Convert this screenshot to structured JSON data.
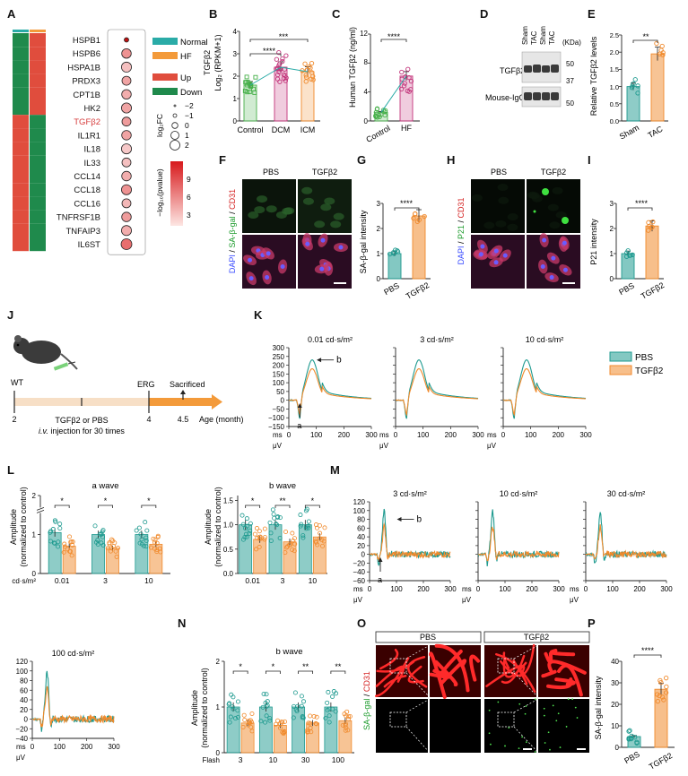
{
  "panels": [
    "A",
    "B",
    "C",
    "D",
    "E",
    "F",
    "G",
    "H",
    "I",
    "J",
    "K",
    "L",
    "M",
    "N",
    "O",
    "P"
  ],
  "colors": {
    "normal": "#2aaba7",
    "hf": "#f39a3a",
    "up": "#e04d3d",
    "down": "#1f8a4c",
    "teal": "#1e9a8f",
    "orange": "#f08a2c"
  },
  "panelA": {
    "genes": [
      "HSPB1",
      "HSPB6",
      "HSPA1B",
      "PRDX3",
      "CPT1B",
      "HK2",
      "TGFβ2",
      "IL1R1",
      "IL18",
      "IL33",
      "CCL14",
      "CCL18",
      "CCL16",
      "TNFRSF1B",
      "TNFAIP3",
      "IL6ST"
    ],
    "highlight_gene": "TGFβ2",
    "normal_col": [
      "down",
      "down",
      "down",
      "down",
      "down",
      "down",
      "up",
      "up",
      "up",
      "up",
      "up",
      "up",
      "up",
      "up",
      "up",
      "up"
    ],
    "hf_col": [
      "up",
      "up",
      "up",
      "up",
      "up",
      "up",
      "down",
      "down",
      "down",
      "down",
      "down",
      "down",
      "down",
      "down",
      "down",
      "down"
    ],
    "legend": {
      "normal": "Normal",
      "hf": "HF",
      "up": "Up",
      "down": "Down",
      "size_title": "log₂FC",
      "size_labels": [
        "−2",
        "−1",
        "0",
        "1",
        "2"
      ],
      "color_title": "−log₁₀(pvalue)",
      "color_ticks": [
        "9",
        "6",
        "3"
      ]
    }
  },
  "panelB": {
    "ylabel_top": "TGFβ2",
    "ylabel": "Log₂ (RPKM+1)",
    "categories": [
      "Control",
      "DCM",
      "ICM"
    ],
    "yticks": [
      "0",
      "1",
      "2",
      "3",
      "4"
    ],
    "ylim": [
      0,
      4
    ],
    "means": [
      1.6,
      2.4,
      2.2
    ],
    "sig": [
      "****",
      "***"
    ]
  },
  "panelC": {
    "ylabel": "Human TGFβ2 (ng/ml)",
    "categories": [
      "Control",
      "HF"
    ],
    "yticks": [
      "0",
      "4",
      "8",
      "12"
    ],
    "ylim": [
      0,
      12
    ],
    "means": [
      1.2,
      6.2
    ],
    "sig": "****"
  },
  "panelD": {
    "lanes": [
      "Sham",
      "TAC",
      "Sham",
      "TAC"
    ],
    "kda": "(KDa)",
    "row1": "TGFβ2",
    "row2": "Mouse-IgG",
    "markers1": [
      "50",
      "37"
    ],
    "markers2": [
      "50"
    ]
  },
  "panelE": {
    "ylabel": "Relative TGFβ2 levels",
    "categories": [
      "Sham",
      "TAC"
    ],
    "yticks": [
      "0.0",
      "0.5",
      "1.0",
      "1.5",
      "2.0",
      "2.5"
    ],
    "ylim": [
      0,
      2.5
    ],
    "means": [
      1.0,
      1.95
    ],
    "sig": "**"
  },
  "panelF": {
    "cols": [
      "PBS",
      "TGFβ2"
    ],
    "side": [
      "DAPI",
      " / ",
      "SA-β-gal",
      " / ",
      "CD31"
    ]
  },
  "panelG": {
    "ylabel": "SA-β-gal intensity",
    "categories": [
      "PBS",
      "TGFβ2"
    ],
    "yticks": [
      "0",
      "1",
      "2",
      "3"
    ],
    "ylim": [
      0,
      3
    ],
    "means": [
      1.0,
      2.5
    ],
    "sig": "****"
  },
  "panelH": {
    "cols": [
      "PBS",
      "TGFβ2"
    ],
    "side": [
      "DAPI",
      " / ",
      "P21",
      " / ",
      "CD31"
    ]
  },
  "panelI": {
    "ylabel": "P21 intensity",
    "categories": [
      "PBS",
      "TGFβ2"
    ],
    "yticks": [
      "0",
      "1",
      "2",
      "3"
    ],
    "ylim": [
      0,
      3
    ],
    "means": [
      1.0,
      2.1
    ],
    "sig": "****"
  },
  "panelJ": {
    "wt": "WT",
    "erg": "ERG",
    "sacrificed": "Sacrificed",
    "ticks": [
      "2",
      "4",
      "4.5"
    ],
    "axis": "Age (month)",
    "inj1": "TGFβ2 or PBS",
    "inj2": "i.v.",
    "inj3": " injection for 30 times"
  },
  "panelK": {
    "titles": [
      "0.01 cd·s/m²",
      "3 cd·s/m²",
      "10 cd·s/m²"
    ],
    "legend": [
      "PBS",
      "TGFβ2"
    ],
    "yticks": [
      "300",
      "250",
      "200",
      "150",
      "100",
      "50",
      "0",
      "−50",
      "−100",
      "−150"
    ],
    "xticks": [
      "0",
      "100",
      "200",
      "300"
    ],
    "xunit": "ms",
    "yunit": "μV",
    "a": "a",
    "b": "b"
  },
  "panelL": {
    "ylabel1": "Amplitude",
    "ylabel2": "(normalized to control)",
    "titles": [
      "a wave",
      "b wave"
    ],
    "categories": [
      "0.01",
      "3",
      "10"
    ],
    "unit": "cd·s/m²",
    "yticks_a": [
      "0",
      "1",
      "2"
    ],
    "yticks_b": [
      "0.0",
      "0.5",
      "1.0",
      "1.5"
    ],
    "a_means": {
      "pbs": [
        1.05,
        1.0,
        1.0
      ],
      "tgf": [
        0.7,
        0.65,
        0.75
      ]
    },
    "b_means": {
      "pbs": [
        1.0,
        1.0,
        1.0
      ],
      "tgf": [
        0.7,
        0.65,
        0.75
      ]
    },
    "sig_a": [
      "*",
      "*",
      "*"
    ],
    "sig_b": [
      "*",
      "**",
      "*"
    ]
  },
  "panelM": {
    "titles": [
      "3 cd·s/m²",
      "10 cd·s/m²",
      "30 cd·s/m²"
    ],
    "yticks": [
      "120",
      "100",
      "80",
      "60",
      "40",
      "20",
      "0",
      "−20",
      "−40",
      "−60"
    ],
    "xticks": [
      "0",
      "100",
      "200",
      "300"
    ],
    "xunit": "ms",
    "yunit": "μV",
    "a": "a",
    "b": "b"
  },
  "panelM100": {
    "title": "100 cd·s/m²",
    "yticks": [
      "120",
      "100",
      "80",
      "60",
      "40",
      "20",
      "0",
      "−20",
      "−40"
    ],
    "xticks": [
      "0",
      "100",
      "200",
      "300"
    ],
    "xunit": "ms",
    "yunit": "μV"
  },
  "panelN": {
    "title": "b wave",
    "ylabel1": "Amplitude",
    "ylabel2": "(normalized to control)",
    "yticks": [
      "0",
      "1",
      "2"
    ],
    "categories": [
      "3",
      "10",
      "30",
      "100"
    ],
    "flash": "Flash",
    "means": {
      "pbs": [
        1.0,
        1.0,
        1.0,
        1.0
      ],
      "tgf": [
        0.65,
        0.6,
        0.65,
        0.7
      ]
    },
    "sig": [
      "*",
      "*",
      "**",
      "**"
    ]
  },
  "panelO": {
    "cols": [
      "PBS",
      "TGFβ2"
    ],
    "side": [
      "SA-β-gal",
      " / ",
      "CD31"
    ]
  },
  "panelP": {
    "ylabel": "SA-β-gal intensity",
    "categories": [
      "PBS",
      "TGFβ2"
    ],
    "yticks": [
      "0",
      "10",
      "20",
      "30",
      "40"
    ],
    "ylim": [
      0,
      40
    ],
    "means": [
      5,
      27
    ],
    "sig": "****"
  }
}
